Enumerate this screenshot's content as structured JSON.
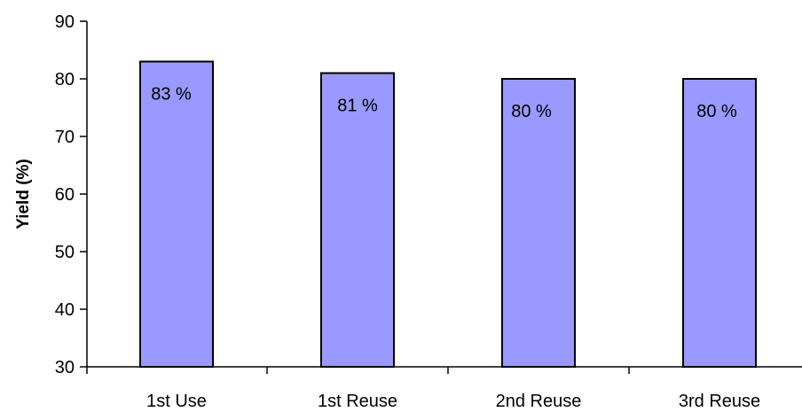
{
  "chart_data": {
    "type": "bar",
    "title": "",
    "xlabel": "",
    "ylabel": "Yield (%)",
    "categories": [
      "1st Use",
      "1st Reuse",
      "2nd Reuse",
      "3rd Reuse"
    ],
    "values": [
      83,
      81,
      80,
      80
    ],
    "data_labels": [
      "83 %",
      "81 %",
      "80 %",
      "80 %"
    ],
    "ylim": [
      30,
      90
    ],
    "yticks": [
      30,
      40,
      50,
      60,
      70,
      80,
      90
    ],
    "grid": false,
    "legend": "none",
    "colors": {
      "bar_fill": "#9999ff",
      "bar_stroke": "#000000",
      "axis": "#000000"
    }
  }
}
